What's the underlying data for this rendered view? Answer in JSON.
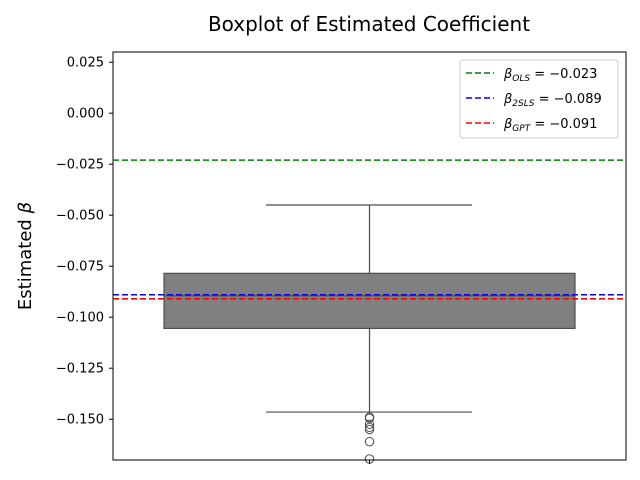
{
  "chart_data": {
    "type": "box",
    "title": "Boxplot of Estimated Coefficient",
    "ylabel_text": "Estimated ",
    "ylabel_symbol": "β",
    "ylim": [
      -0.17,
      0.03
    ],
    "yticks": [
      0.025,
      0.0,
      -0.025,
      -0.05,
      -0.075,
      -0.1,
      -0.125,
      -0.15
    ],
    "ytick_labels": [
      "0.025",
      "0.000",
      "−0.025",
      "−0.050",
      "−0.075",
      "−0.100",
      "−0.125",
      "−0.150"
    ],
    "grid": false,
    "legend_position": "top-right",
    "box": {
      "whisker_high": -0.045,
      "q3": -0.0785,
      "median": -0.0895,
      "q1": -0.1055,
      "whisker_low": -0.1465,
      "outliers": [
        -0.149,
        -0.1495,
        -0.1525,
        -0.154,
        -0.155,
        -0.161,
        -0.1695
      ],
      "color": "#808080"
    },
    "reference_lines": [
      {
        "symbol": "β",
        "subscript": "OLS",
        "value_text": " = −0.023",
        "value": -0.023,
        "color": "#008000"
      },
      {
        "symbol": "β",
        "subscript": "2SLS",
        "value_text": " = −0.089",
        "value": -0.089,
        "color": "#0000ff"
      },
      {
        "symbol": "β",
        "subscript": "GPT",
        "value_text": " = −0.091",
        "value": -0.091,
        "color": "#ff0000"
      }
    ]
  }
}
